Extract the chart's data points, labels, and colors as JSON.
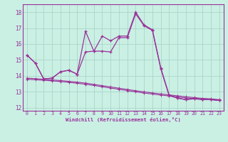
{
  "xlabel": "Windchill (Refroidissement éolien,°C)",
  "background_color": "#caf0e4",
  "grid_color": "#aad4c8",
  "line_color": "#993399",
  "x": [
    0,
    1,
    2,
    3,
    4,
    5,
    6,
    7,
    8,
    9,
    10,
    11,
    12,
    13,
    14,
    15,
    16,
    17,
    18,
    19,
    20,
    21,
    22,
    23
  ],
  "series_main": [
    15.3,
    14.8,
    13.8,
    13.85,
    14.25,
    14.35,
    14.1,
    16.8,
    15.55,
    16.5,
    16.2,
    16.5,
    16.5,
    18.0,
    17.2,
    16.9,
    14.5,
    12.8,
    12.6,
    12.5,
    12.6,
    12.5,
    12.5,
    12.45
  ],
  "series_upper": [
    15.3,
    14.8,
    13.8,
    13.85,
    14.25,
    14.35,
    14.1,
    15.5,
    15.55,
    15.55,
    15.5,
    16.4,
    16.4,
    17.9,
    17.15,
    16.85,
    14.45,
    12.75,
    12.6,
    12.5,
    12.55,
    12.5,
    12.5,
    12.45
  ],
  "series_lower1": [
    13.85,
    13.82,
    13.78,
    13.74,
    13.7,
    13.65,
    13.6,
    13.54,
    13.46,
    13.38,
    13.3,
    13.22,
    13.14,
    13.06,
    12.99,
    12.92,
    12.86,
    12.8,
    12.74,
    12.68,
    12.63,
    12.58,
    12.55,
    12.5
  ],
  "series_lower2": [
    13.78,
    13.75,
    13.72,
    13.68,
    13.64,
    13.59,
    13.53,
    13.47,
    13.39,
    13.31,
    13.23,
    13.15,
    13.07,
    12.99,
    12.92,
    12.85,
    12.79,
    12.73,
    12.67,
    12.61,
    12.57,
    12.53,
    12.51,
    12.47
  ],
  "ylim": [
    11.8,
    18.5
  ],
  "xlim": [
    -0.5,
    23.5
  ],
  "yticks": [
    12,
    13,
    14,
    15,
    16,
    17,
    18
  ],
  "xticks": [
    0,
    1,
    2,
    3,
    4,
    5,
    6,
    7,
    8,
    9,
    10,
    11,
    12,
    13,
    14,
    15,
    16,
    17,
    18,
    19,
    20,
    21,
    22,
    23
  ]
}
